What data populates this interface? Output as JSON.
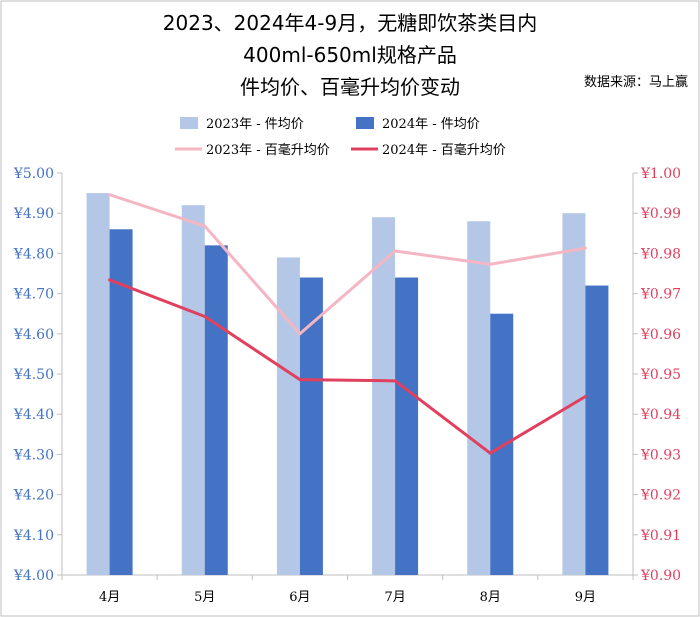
{
  "header": {
    "title_lines": [
      "2023、2024年4-9月，无糖即饮茶类目内",
      "400ml-650ml规格产品",
      "件均价、百毫升均价变动"
    ],
    "source": "数据来源：马上赢"
  },
  "chart_data": {
    "type": "bar",
    "categories": [
      "4月",
      "5月",
      "6月",
      "7月",
      "8月",
      "9月"
    ],
    "series": [
      {
        "name": "2023年 - 件均价",
        "kind": "bar",
        "axis": "left",
        "color": "#b4c7e7",
        "values": [
          4.95,
          4.92,
          4.79,
          4.89,
          4.88,
          4.9
        ]
      },
      {
        "name": "2024年 - 件均价",
        "kind": "bar",
        "axis": "left",
        "color": "#4472c4",
        "values": [
          4.86,
          4.82,
          4.74,
          4.74,
          4.65,
          4.72
        ]
      },
      {
        "name": "2023年 - 百毫升均价",
        "kind": "line",
        "axis": "right",
        "color": "#f4b6c2",
        "values": [
          0.9946,
          0.9868,
          0.96,
          0.9806,
          0.9773,
          0.9813
        ]
      },
      {
        "name": "2024年 - 百毫升均价",
        "kind": "line",
        "axis": "right",
        "color": "#e0405e",
        "values": [
          0.9734,
          0.9643,
          0.9486,
          0.9483,
          0.9303,
          0.9444
        ]
      }
    ],
    "left_axis": {
      "ylim": [
        4.0,
        5.0
      ],
      "ticks": [
        "¥4.00",
        "¥4.10",
        "¥4.20",
        "¥4.30",
        "¥4.40",
        "¥4.50",
        "¥4.60",
        "¥4.70",
        "¥4.80",
        "¥4.90",
        "¥5.00"
      ],
      "color": "#4472c4"
    },
    "right_axis": {
      "ylim": [
        0.9,
        1.0
      ],
      "ticks": [
        "¥0.90",
        "¥0.91",
        "¥0.92",
        "¥0.93",
        "¥0.94",
        "¥0.95",
        "¥0.96",
        "¥0.97",
        "¥0.98",
        "¥0.99",
        "¥1.00"
      ],
      "color": "#e0405e"
    },
    "grid": false,
    "legend_placement": "top"
  }
}
